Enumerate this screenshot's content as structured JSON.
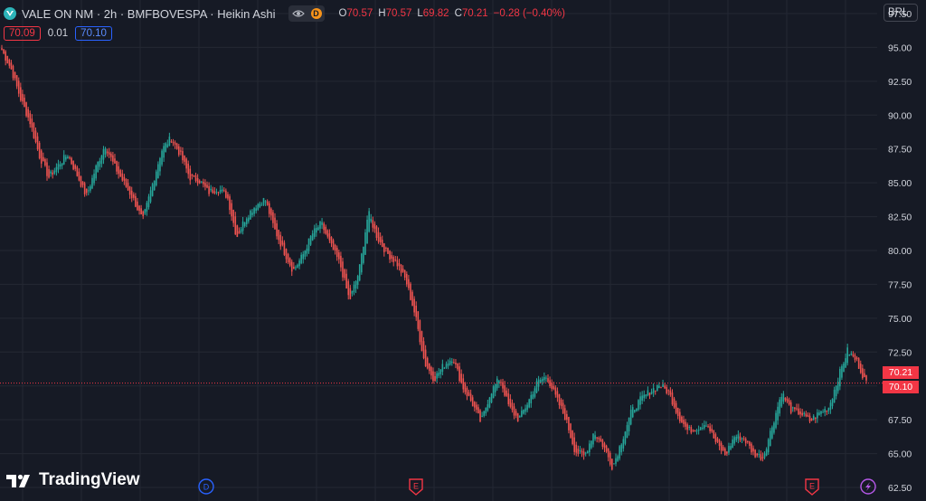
{
  "header": {
    "title": "VALE ON NM · 2h · BMFBOVESPA · Heikin Ashi",
    "d_badge": "D",
    "ohlc": {
      "o_label": "O",
      "o_value": "70.57",
      "h_label": "H",
      "h_value": "70.57",
      "l_label": "L",
      "l_value": "69.82",
      "c_label": "C",
      "c_value": "70.21",
      "change": "−0.28 (−0.40%)"
    }
  },
  "quote": {
    "bid": "70.09",
    "spread": "0.01",
    "ask": "70.10"
  },
  "currency_button": "BRL",
  "price_tags": {
    "last": "70.21",
    "ask": "70.10"
  },
  "logo_text": "TradingView",
  "event_markers": [
    "D",
    "E",
    "E"
  ],
  "colors": {
    "up": "#26a69a",
    "down": "#ef5350",
    "background": "#161a25",
    "grid": "#242833",
    "text": "#d1d4dc",
    "price_line": "#f23645"
  },
  "icons": [
    "vale-logo-icon",
    "eye-icon",
    "dividend-icon",
    "earnings-icon",
    "flash-icon",
    "tradingview-logo-icon"
  ],
  "chart_data": {
    "type": "candlestick",
    "style": "Heikin Ashi",
    "ylim": [
      61.5,
      98.5
    ],
    "yticks": [
      "97.50",
      "95.00",
      "92.50",
      "90.00",
      "87.50",
      "85.00",
      "82.50",
      "80.00",
      "77.50",
      "75.00",
      "72.50",
      "70.00",
      "67.50",
      "65.00",
      "62.50"
    ],
    "grid": true,
    "last_price": 70.21,
    "price_path": [
      94.8,
      93.4,
      91.2,
      89.5,
      87.0,
      85.4,
      86.3,
      87.1,
      85.6,
      84.0,
      86.1,
      87.8,
      86.2,
      85.0,
      83.8,
      82.2,
      84.8,
      87.4,
      88.3,
      87.1,
      85.4,
      85.2,
      84.3,
      84.6,
      84.0,
      81.0,
      82.5,
      83.3,
      83.8,
      81.6,
      80.0,
      78.5,
      79.6,
      81.2,
      82.0,
      80.4,
      79.0,
      76.3,
      78.4,
      82.8,
      80.9,
      79.8,
      79.1,
      77.8,
      75.2,
      71.7,
      70.5,
      71.5,
      72.1,
      70.0,
      68.8,
      67.3,
      69.5,
      70.6,
      68.4,
      67.5,
      68.8,
      70.3,
      70.7,
      69.1,
      67.6,
      65.2,
      64.8,
      66.6,
      65.6,
      64.0,
      66.0,
      68.1,
      69.0,
      69.6,
      70.1,
      69.5,
      67.8,
      66.7,
      66.9,
      67.3,
      65.8,
      64.9,
      66.3,
      66.1,
      65.0,
      64.7,
      67.1,
      69.5,
      68.2,
      68.0,
      67.4,
      68.0,
      68.4,
      70.6,
      72.6,
      71.8,
      70.2
    ]
  }
}
